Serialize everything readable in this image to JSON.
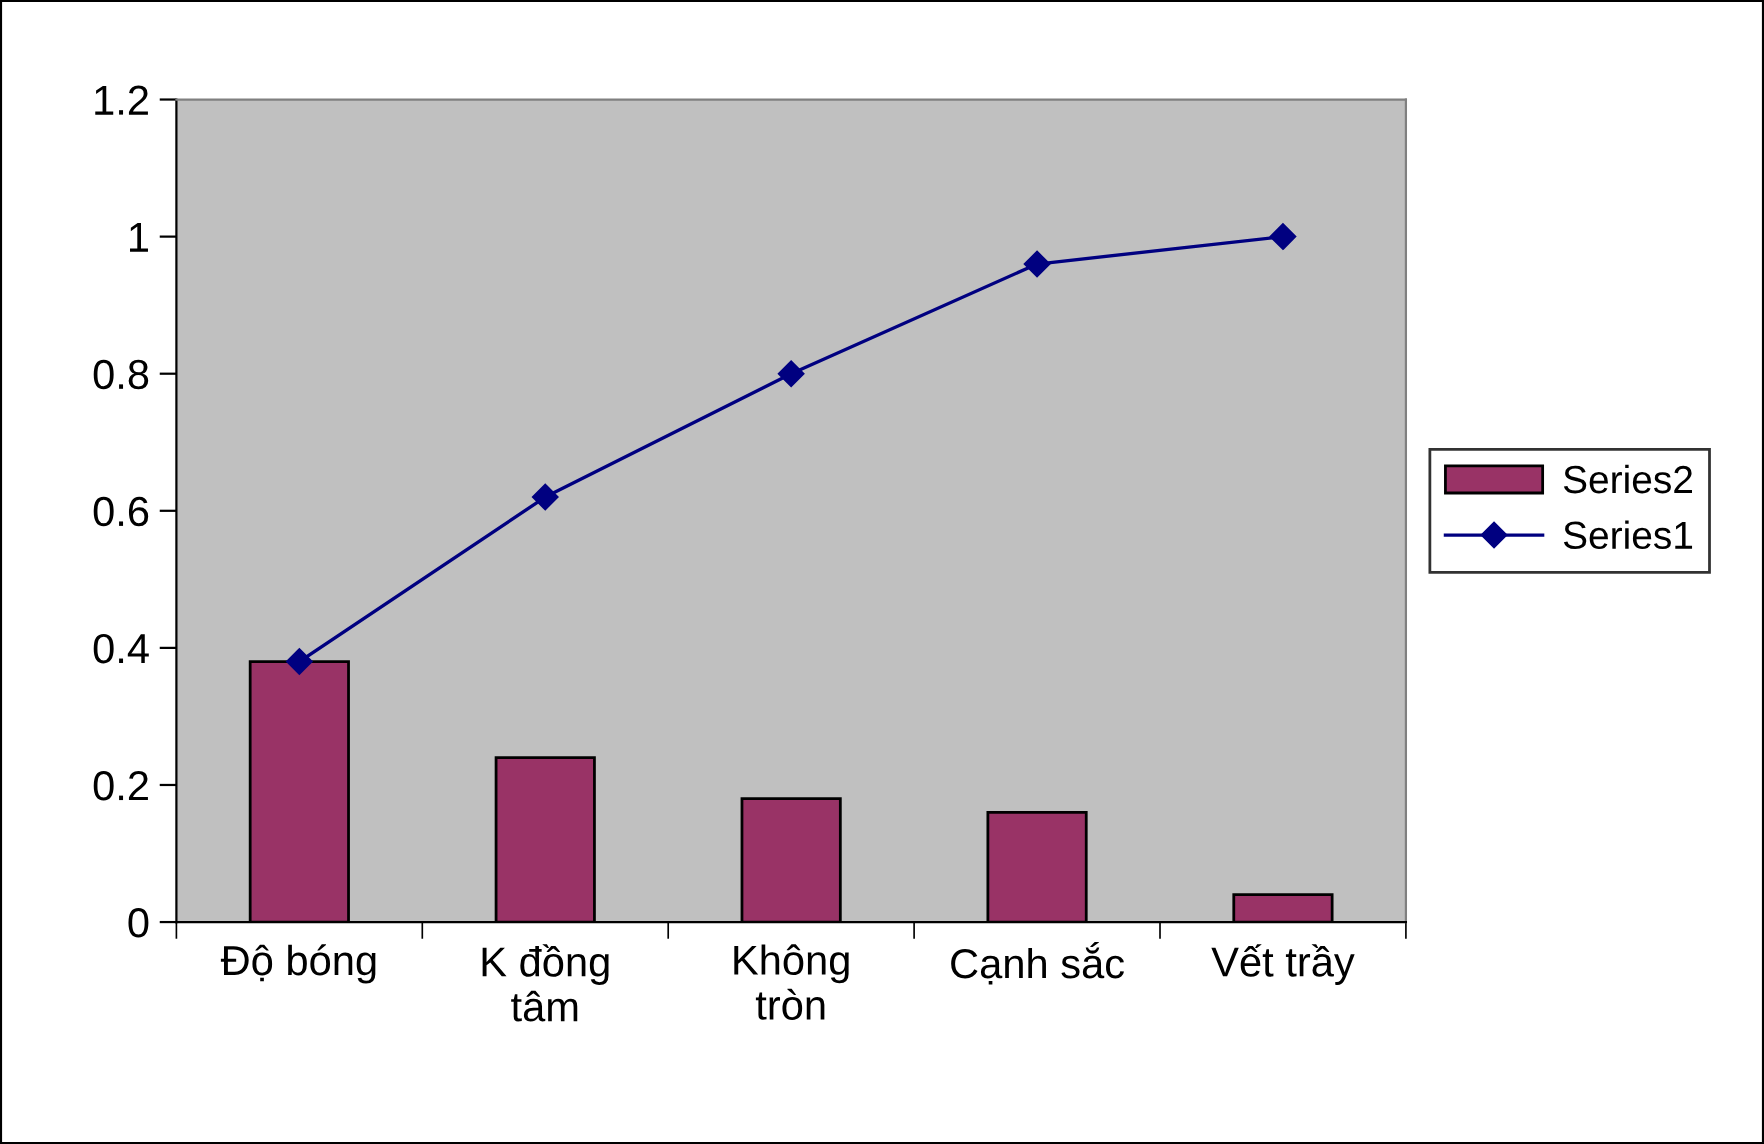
{
  "chart_data": {
    "type": "bar",
    "categories": [
      "Độ bóng",
      "K đồng\ntâm",
      "Không\ntròn",
      "Cạnh sắc",
      "Vết trầy"
    ],
    "series": [
      {
        "name": "Series2",
        "color": "#993366",
        "values": [
          0.38,
          0.24,
          0.18,
          0.16,
          0.04
        ]
      },
      {
        "name": "Series1",
        "type": "line",
        "color": "#000080",
        "marker": "diamond",
        "values": [
          0.38,
          0.62,
          0.8,
          0.96,
          1.0
        ]
      }
    ],
    "ylim": [
      0,
      1.2
    ],
    "yticks": [
      0,
      0.2,
      0.4,
      0.6,
      0.8,
      1,
      1.2
    ],
    "grid": false,
    "legend": "right"
  }
}
